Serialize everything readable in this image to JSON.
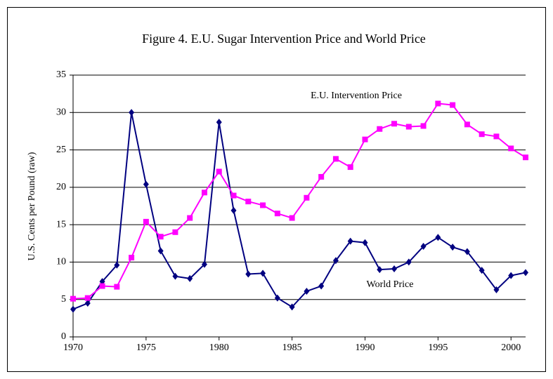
{
  "chart_data": {
    "type": "line",
    "title": "Figure 4. E.U. Sugar Intervention Price and World Price",
    "y_label": "U.S. Cents per Pound (raw)",
    "x": [
      1970,
      1971,
      1972,
      1973,
      1974,
      1975,
      1976,
      1977,
      1978,
      1979,
      1980,
      1981,
      1982,
      1983,
      1984,
      1985,
      1986,
      1987,
      1988,
      1989,
      1990,
      1991,
      1992,
      1993,
      1994,
      1995,
      1996,
      1997,
      1998,
      1999,
      2000,
      2001
    ],
    "series": [
      {
        "name": "World Price",
        "color": "#000080",
        "marker": "diamond",
        "values": [
          3.7,
          4.5,
          7.4,
          9.6,
          30.0,
          20.4,
          11.5,
          8.1,
          7.8,
          9.7,
          28.7,
          16.9,
          8.4,
          8.5,
          5.2,
          4.0,
          6.1,
          6.8,
          10.2,
          12.8,
          12.6,
          9.0,
          9.1,
          10.0,
          12.1,
          13.3,
          12.0,
          11.4,
          8.9,
          6.3,
          8.2,
          8.6
        ]
      },
      {
        "name": "E.U. Intervention Price",
        "color": "#ff00ff",
        "marker": "square",
        "values": [
          5.1,
          5.2,
          6.8,
          6.7,
          10.6,
          15.4,
          13.4,
          14.0,
          15.9,
          19.3,
          22.1,
          18.9,
          18.1,
          17.6,
          16.5,
          15.9,
          18.6,
          21.4,
          23.8,
          22.7,
          26.4,
          27.8,
          28.5,
          28.1,
          28.2,
          31.2,
          31.0,
          28.4,
          27.1,
          26.8,
          25.2,
          24.0
        ]
      }
    ],
    "xlim": [
      1970,
      2001
    ],
    "xticks": [
      1970,
      1975,
      1980,
      1985,
      1990,
      1995,
      2000
    ],
    "ylim": [
      0,
      35
    ],
    "yticks": [
      0,
      5,
      10,
      15,
      20,
      25,
      30,
      35
    ],
    "grid": true
  }
}
